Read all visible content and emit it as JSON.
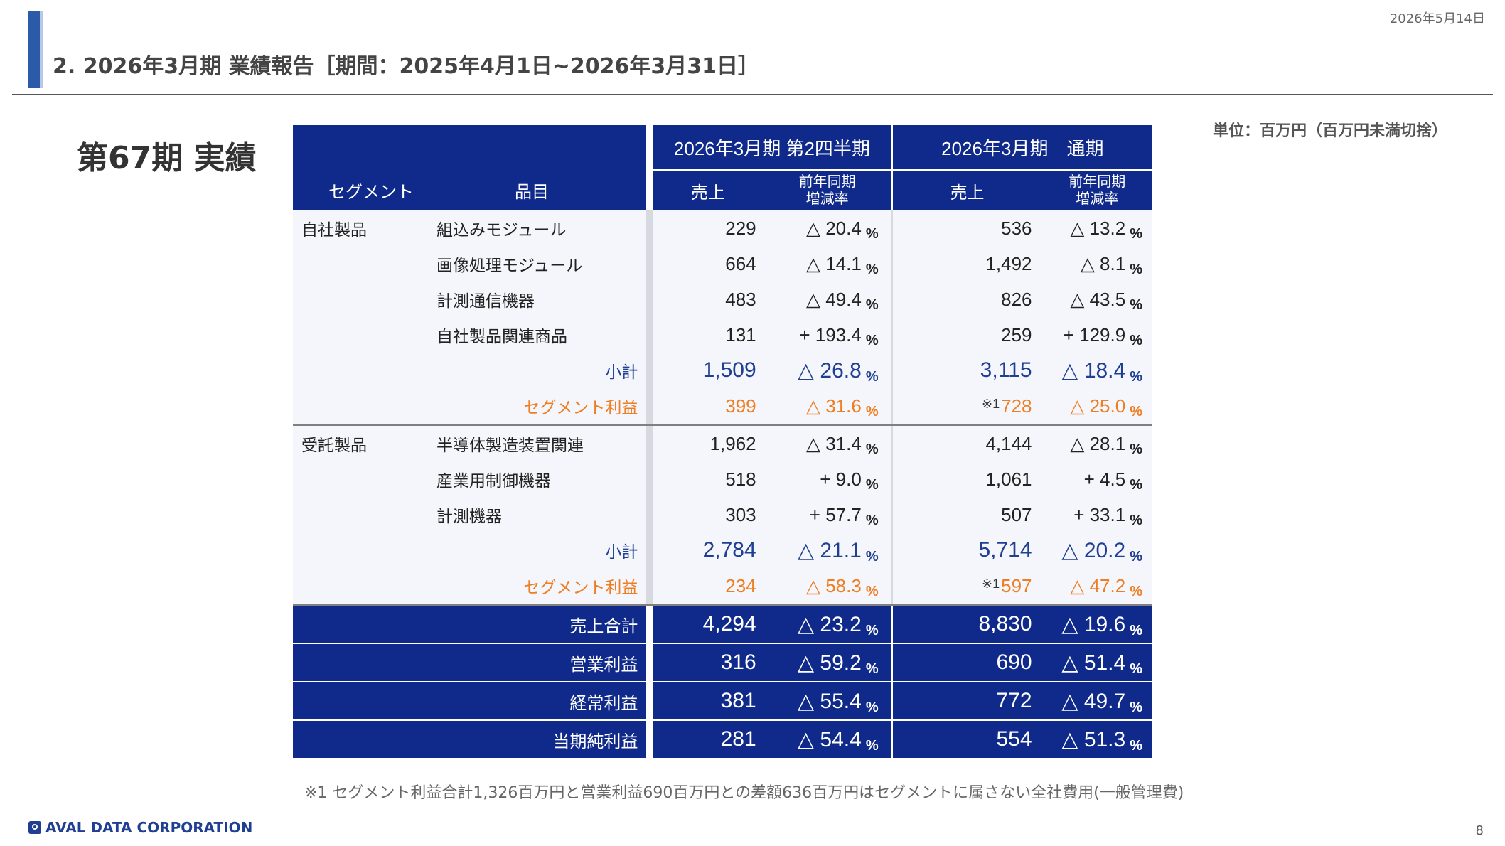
{
  "date": "2026年5月14日",
  "slide_title": "2. 2026年3月期 業績報告［期間：2025年4月1日~2026年3月31日］",
  "section_title": "第67期 実績",
  "unit_note": "単位：百万円（百万円未満切捨）",
  "table": {
    "period_q4": "2026年3月期 第2四半期",
    "period_full": "2026年3月期　通期",
    "col_segment": "セグメント",
    "col_item": "品目",
    "col_sales": "売上",
    "col_yoy": "前年同期\n増減率",
    "pct": "%",
    "groups": [
      {
        "segment": "自社製品",
        "rows": [
          {
            "item": "組込みモジュール",
            "q_sales": "229",
            "q_yoy": "△ 20.4",
            "f_sales": "536",
            "f_yoy": "△ 13.2"
          },
          {
            "item": "画像処理モジュール",
            "q_sales": "664",
            "q_yoy": "△ 14.1",
            "f_sales": "1,492",
            "f_yoy": "△ 8.1"
          },
          {
            "item": "計測通信機器",
            "q_sales": "483",
            "q_yoy": "△ 49.4",
            "f_sales": "826",
            "f_yoy": "△ 43.5"
          },
          {
            "item": "自社製品関連商品",
            "q_sales": "131",
            "q_yoy": "+ 193.4",
            "f_sales": "259",
            "f_yoy": "+ 129.9"
          }
        ],
        "subtotal": {
          "label": "小計",
          "q_sales": "1,509",
          "q_yoy": "△ 26.8",
          "f_sales": "3,115",
          "f_yoy": "△ 18.4"
        },
        "segment_profit": {
          "label": "セグメント利益",
          "q_sales": "399",
          "q_yoy": "△ 31.6",
          "f_mark": "※1",
          "f_sales": "728",
          "f_yoy": "△ 25.0"
        }
      },
      {
        "segment": "受託製品",
        "rows": [
          {
            "item": "半導体製造装置関連",
            "q_sales": "1,962",
            "q_yoy": "△ 31.4",
            "f_sales": "4,144",
            "f_yoy": "△ 28.1"
          },
          {
            "item": "産業用制御機器",
            "q_sales": "518",
            "q_yoy": "+ 9.0",
            "f_sales": "1,061",
            "f_yoy": "+ 4.5"
          },
          {
            "item": "計測機器",
            "q_sales": "303",
            "q_yoy": "+ 57.7",
            "f_sales": "507",
            "f_yoy": "+ 33.1"
          }
        ],
        "subtotal": {
          "label": "小計",
          "q_sales": "2,784",
          "q_yoy": "△ 21.1",
          "f_sales": "5,714",
          "f_yoy": "△ 20.2"
        },
        "segment_profit": {
          "label": "セグメント利益",
          "q_sales": "234",
          "q_yoy": "△ 58.3",
          "f_mark": "※1",
          "f_sales": "597",
          "f_yoy": "△ 47.2"
        }
      }
    ],
    "totals": [
      {
        "label": "売上合計",
        "q_sales": "4,294",
        "q_yoy": "△ 23.2",
        "f_sales": "8,830",
        "f_yoy": "△ 19.6"
      },
      {
        "label": "営業利益",
        "q_sales": "316",
        "q_yoy": "△ 59.2",
        "f_sales": "690",
        "f_yoy": "△ 51.4"
      },
      {
        "label": "経常利益",
        "q_sales": "381",
        "q_yoy": "△ 55.4",
        "f_sales": "772",
        "f_yoy": "△ 49.7"
      },
      {
        "label": "当期純利益",
        "q_sales": "281",
        "q_yoy": "△ 54.4",
        "f_sales": "554",
        "f_yoy": "△ 51.3"
      }
    ]
  },
  "footnote": "※1 セグメント利益合計1,326百万円と営業利益690百万円との差額636百万円はセグメントに属さない全社費用(一般管理費)",
  "logo_text": "AVAL DATA CORPORATION",
  "page_number": "8"
}
